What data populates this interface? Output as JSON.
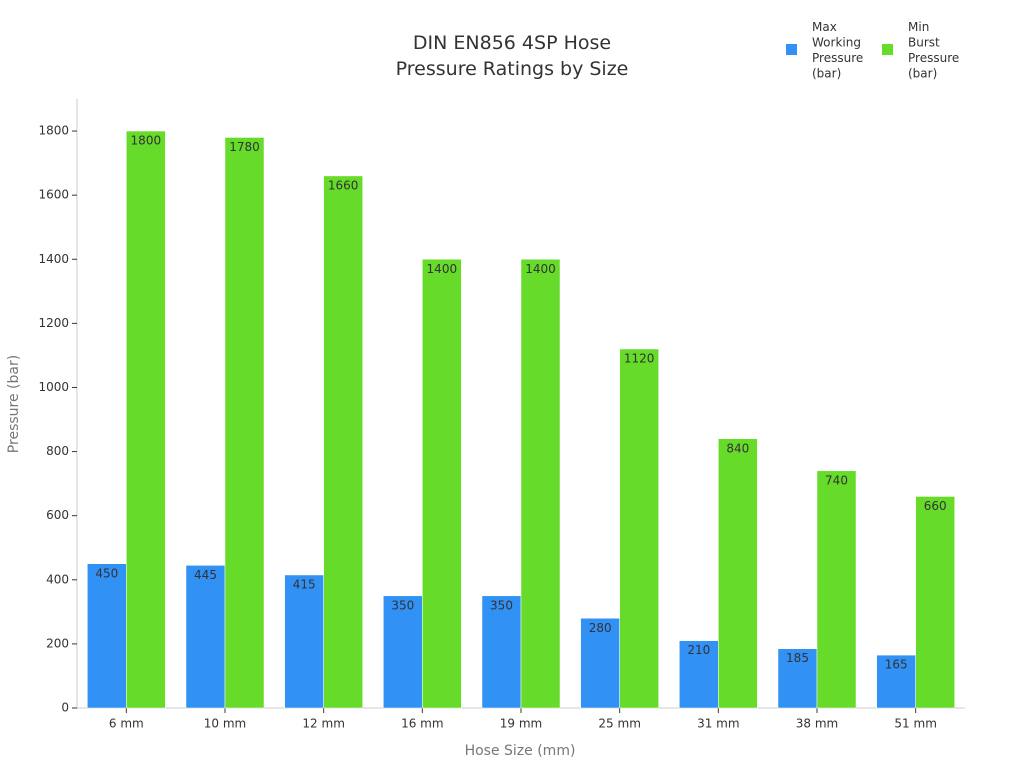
{
  "chart_data": {
    "type": "bar",
    "title": "DIN EN856 4SP Hose Pressure Ratings by Size",
    "x_label": "Hose Size (mm)",
    "y_label": "Pressure (bar)",
    "categories": [
      "6 mm",
      "10 mm",
      "12 mm",
      "16 mm",
      "19 mm",
      "25 mm",
      "31 mm",
      "38 mm",
      "51 mm"
    ],
    "series": [
      {
        "name": "Max Working Pressure (bar)",
        "color": "#3191f5",
        "values": [
          450,
          445,
          415,
          350,
          350,
          280,
          210,
          185,
          165
        ]
      },
      {
        "name": "Min Burst Pressure (bar)",
        "color": "#66db29",
        "values": [
          1800,
          1780,
          1660,
          1400,
          1400,
          1120,
          840,
          740,
          660
        ]
      }
    ],
    "ylim": [
      0,
      1900
    ],
    "yticks": [
      0,
      200,
      400,
      600,
      800,
      1000,
      1200,
      1400,
      1600,
      1800
    ],
    "legend": "top-right"
  }
}
